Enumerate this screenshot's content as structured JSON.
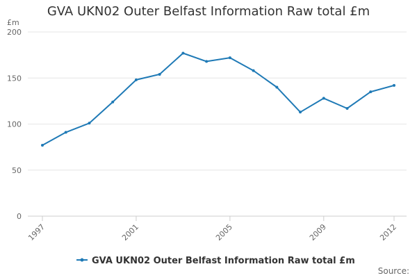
{
  "chart_data": {
    "type": "line",
    "title": "GVA UKN02 Outer Belfast Information Raw total £m",
    "ylabel": "£m",
    "xlabel": "",
    "x": [
      1997,
      1998,
      1999,
      2000,
      2001,
      2002,
      2003,
      2004,
      2005,
      2006,
      2007,
      2008,
      2009,
      2010,
      2011,
      2012
    ],
    "x_tick_labels": [
      "1997",
      "2001",
      "2005",
      "2009",
      "2012"
    ],
    "y_tick_labels": [
      "0",
      "50",
      "100",
      "150",
      "200"
    ],
    "ylim": [
      0,
      200
    ],
    "grid": true,
    "legend_position": "bottom",
    "series": [
      {
        "name": "GVA UKN02 Outer Belfast Information Raw total £m",
        "color": "#1f7ab6",
        "values": [
          77,
          91,
          101,
          124,
          148,
          154,
          177,
          168,
          172,
          158,
          140,
          113,
          128,
          117,
          135,
          142
        ]
      }
    ],
    "source_label": "Source:"
  }
}
